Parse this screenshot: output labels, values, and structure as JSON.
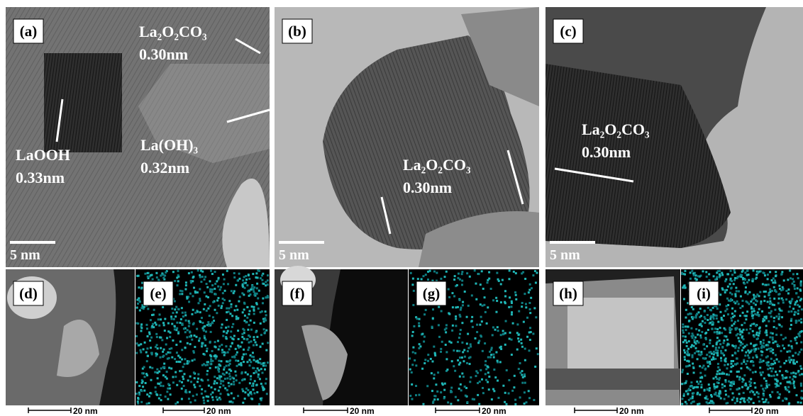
{
  "panels": [
    {
      "label": "(a)",
      "scale_bar": "5 nm",
      "annotations": [
        {
          "lines": [
            "La₂O₂CO₃",
            "0.30nm"
          ]
        },
        {
          "lines": [
            "LaOOH",
            "0.33nm"
          ]
        },
        {
          "lines": [
            "La(OH)₃",
            "0.32nm"
          ]
        }
      ]
    },
    {
      "label": "(b)",
      "scale_bar": "5 nm",
      "annotations": [
        {
          "lines": [
            "La₂O₂CO₃",
            "0.30nm"
          ]
        }
      ]
    },
    {
      "label": "(c)",
      "scale_bar": "5 nm",
      "annotations": [
        {
          "lines": [
            "La₂O₂CO₃",
            "0.30nm"
          ]
        }
      ]
    },
    {
      "label": "(d)",
      "scale_bar": "20 nm"
    },
    {
      "label": "(e)",
      "scale_bar": "20 nm"
    },
    {
      "label": "(f)",
      "scale_bar": "20 nm"
    },
    {
      "label": "(g)",
      "scale_bar": "20 nm"
    },
    {
      "label": "(h)",
      "scale_bar": "20 nm"
    },
    {
      "label": "(i)",
      "scale_bar": "20 nm"
    }
  ]
}
